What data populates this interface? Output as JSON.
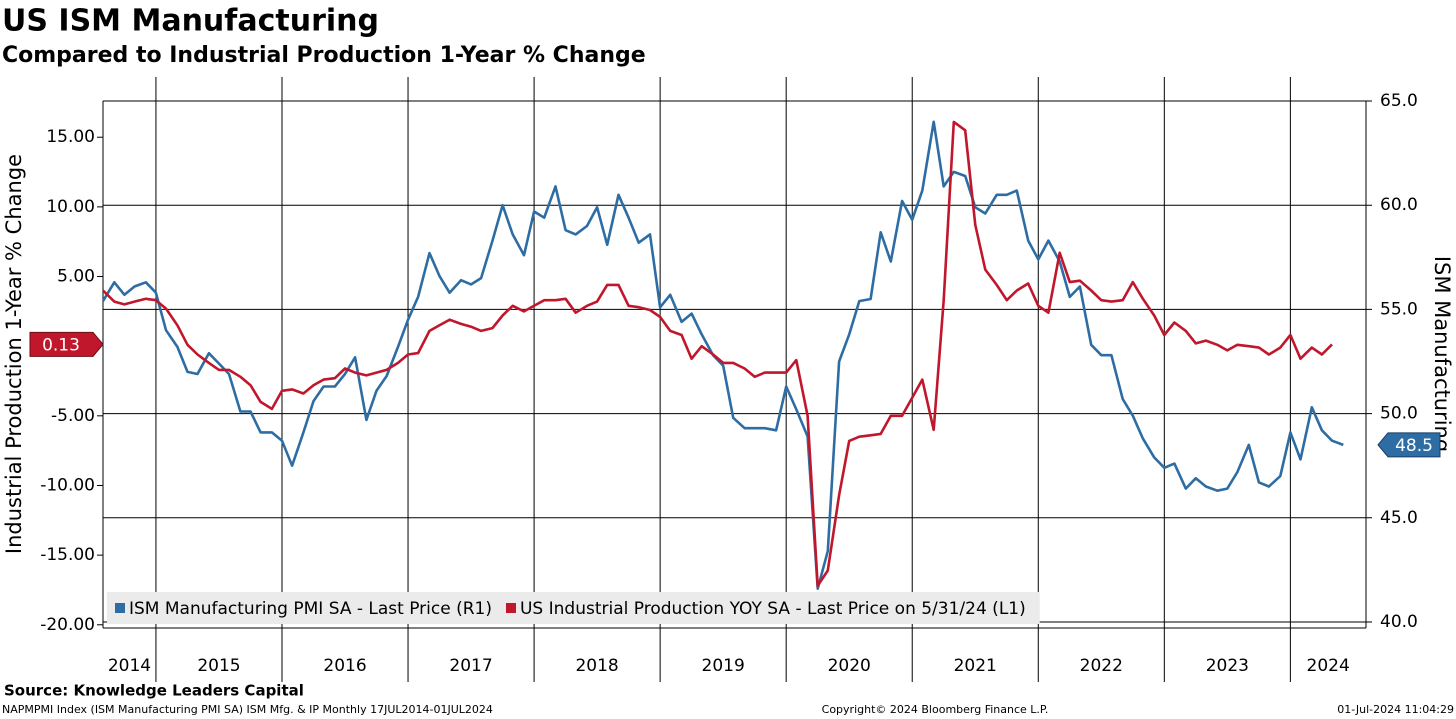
{
  "chart_data": {
    "type": "line",
    "title": "US ISM Manufacturing",
    "subtitle": "Compared to Industrial Production 1-Year % Change",
    "y_label": "Industrial Production 1-Year % Change",
    "y2_label": "ISM Manufacturing",
    "source": "Source: Knowledge Leaders Capital",
    "footer": [
      "NAPMPMI Index (ISM Manufacturing PMI SA) ISM Mfg. & IP  Monthly 17JUL2014-01JUL2024",
      "Copyright© 2024 Bloomberg Finance L.P.",
      "01-Jul-2024 11:04:29"
    ],
    "grid": true,
    "legend": "lower left",
    "xlim": [
      2014.58,
      2024.6
    ],
    "xticks": [
      2014,
      2015,
      2016,
      2017,
      2018,
      2019,
      2020,
      2021,
      2022,
      2023,
      2024
    ],
    "ylim": [
      -19.8,
      17.6
    ],
    "yticks": [
      {
        "value": 15,
        "label": "15.00"
      },
      {
        "value": 10,
        "label": "10.00"
      },
      {
        "value": 5,
        "label": "5.00"
      },
      {
        "value": -5,
        "label": "-5.00"
      },
      {
        "value": -10,
        "label": "-10.00"
      },
      {
        "value": -15,
        "label": "-15.00"
      },
      {
        "value": -20,
        "label": "-20.00"
      }
    ],
    "y2lim": [
      40,
      65
    ],
    "y2ticks": [
      {
        "value": 65,
        "label": "65.0"
      },
      {
        "value": 60,
        "label": "60.0"
      },
      {
        "value": 55,
        "label": "55.0"
      },
      {
        "value": 50,
        "label": "50.0"
      },
      {
        "value": 45,
        "label": "45.0"
      },
      {
        "value": 40,
        "label": "40.0"
      }
    ],
    "x": [
      2014.58,
      2014.67,
      2014.75,
      2014.83,
      2014.92,
      2015.0,
      2015.08,
      2015.17,
      2015.25,
      2015.33,
      2015.42,
      2015.5,
      2015.58,
      2015.67,
      2015.75,
      2015.83,
      2015.92,
      2016.0,
      2016.08,
      2016.17,
      2016.25,
      2016.33,
      2016.42,
      2016.5,
      2016.58,
      2016.67,
      2016.75,
      2016.83,
      2016.92,
      2017.0,
      2017.08,
      2017.17,
      2017.25,
      2017.33,
      2017.42,
      2017.5,
      2017.58,
      2017.67,
      2017.75,
      2017.83,
      2017.92,
      2018.0,
      2018.08,
      2018.17,
      2018.25,
      2018.33,
      2018.42,
      2018.5,
      2018.58,
      2018.67,
      2018.75,
      2018.83,
      2018.92,
      2019.0,
      2019.08,
      2019.17,
      2019.25,
      2019.33,
      2019.42,
      2019.5,
      2019.58,
      2019.67,
      2019.75,
      2019.83,
      2019.92,
      2020.0,
      2020.08,
      2020.17,
      2020.25,
      2020.33,
      2020.42,
      2020.5,
      2020.58,
      2020.67,
      2020.75,
      2020.83,
      2020.92,
      2021.0,
      2021.08,
      2021.17,
      2021.25,
      2021.33,
      2021.42,
      2021.5,
      2021.58,
      2021.67,
      2021.75,
      2021.83,
      2021.92,
      2022.0,
      2022.08,
      2022.17,
      2022.25,
      2022.33,
      2022.42,
      2022.5,
      2022.58,
      2022.67,
      2022.75,
      2022.83,
      2022.92,
      2023.0,
      2023.08,
      2023.17,
      2023.25,
      2023.33,
      2023.42,
      2023.5,
      2023.58,
      2023.67,
      2023.75,
      2023.83,
      2023.92,
      2024.0,
      2024.08,
      2024.17,
      2024.25,
      2024.33,
      2024.42
    ],
    "series": [
      {
        "name": "ISM Manufacturing PMI SA - Last Price (R1)",
        "color": "#2e6da4",
        "axis": "y2",
        "values": [
          55.4,
          56.3,
          55.7,
          56.1,
          56.3,
          55.8,
          54.0,
          53.2,
          52.0,
          51.9,
          52.9,
          52.4,
          51.9,
          50.1,
          50.1,
          49.1,
          49.1,
          48.7,
          47.5,
          49.1,
          50.6,
          51.3,
          51.3,
          51.9,
          52.7,
          49.7,
          51.1,
          51.8,
          53.2,
          54.5,
          55.6,
          57.7,
          56.6,
          55.8,
          56.4,
          56.2,
          56.5,
          58.3,
          60.0,
          58.6,
          57.6,
          59.7,
          59.4,
          60.9,
          58.8,
          58.6,
          59.0,
          59.9,
          58.1,
          60.5,
          59.4,
          58.2,
          58.6,
          55.1,
          55.7,
          54.4,
          54.8,
          53.8,
          52.8,
          52.3,
          49.8,
          49.3,
          49.3,
          49.3,
          49.2,
          51.3,
          50.2,
          48.9,
          41.6,
          43.4,
          52.5,
          53.8,
          55.4,
          55.5,
          58.7,
          57.3,
          60.2,
          59.3,
          60.7,
          64.0,
          60.9,
          61.6,
          61.4,
          59.9,
          59.6,
          60.5,
          60.5,
          60.7,
          58.3,
          57.4,
          58.3,
          57.3,
          55.6,
          56.1,
          53.3,
          52.8,
          52.8,
          50.7,
          49.9,
          48.8,
          47.9,
          47.4,
          47.6,
          46.4,
          46.9,
          46.5,
          46.3,
          46.4,
          47.2,
          48.5,
          46.7,
          46.5,
          47.0,
          49.1,
          47.8,
          50.3,
          49.2,
          48.7,
          48.5
        ]
      },
      {
        "name": "US Industrial Production YOY SA - Last Price on 5/31/24 (L1)",
        "color": "#c0172c",
        "axis": "y",
        "values": [
          4.0,
          3.2,
          3.0,
          3.2,
          3.4,
          3.3,
          2.7,
          1.5,
          0.1,
          -0.6,
          -1.2,
          -1.7,
          -1.7,
          -2.2,
          -2.8,
          -4.0,
          -4.5,
          -3.2,
          -3.1,
          -3.4,
          -2.8,
          -2.4,
          -2.3,
          -1.6,
          -1.9,
          -2.1,
          -1.9,
          -1.7,
          -1.2,
          -0.6,
          -0.5,
          1.1,
          1.5,
          1.9,
          1.6,
          1.4,
          1.1,
          1.3,
          2.2,
          2.9,
          2.5,
          2.9,
          3.3,
          3.3,
          3.4,
          2.4,
          2.9,
          3.2,
          4.4,
          4.4,
          2.9,
          2.8,
          2.6,
          2.1,
          1.1,
          0.8,
          -0.9,
          0.0,
          -0.6,
          -1.2,
          -1.2,
          -1.6,
          -2.2,
          -1.9,
          -1.9,
          -1.9,
          -1.0,
          -5.0,
          -17.2,
          -16.1,
          -10.7,
          -6.8,
          -6.5,
          -6.4,
          -6.3,
          -5.0,
          -5.0,
          -3.7,
          -2.4,
          -6.0,
          3.3,
          16.1,
          15.5,
          8.7,
          5.5,
          4.4,
          3.3,
          4.0,
          4.5,
          2.9,
          2.4,
          6.7,
          4.6,
          4.7,
          4.0,
          3.3,
          3.2,
          3.3,
          4.6,
          3.4,
          2.2,
          0.8,
          1.7,
          1.1,
          0.2,
          0.4,
          0.1,
          -0.3,
          0.1,
          0.0,
          -0.1,
          -0.6,
          -0.1,
          0.8,
          -0.9,
          -0.1,
          -0.6,
          0.13,
          null
        ]
      }
    ]
  }
}
